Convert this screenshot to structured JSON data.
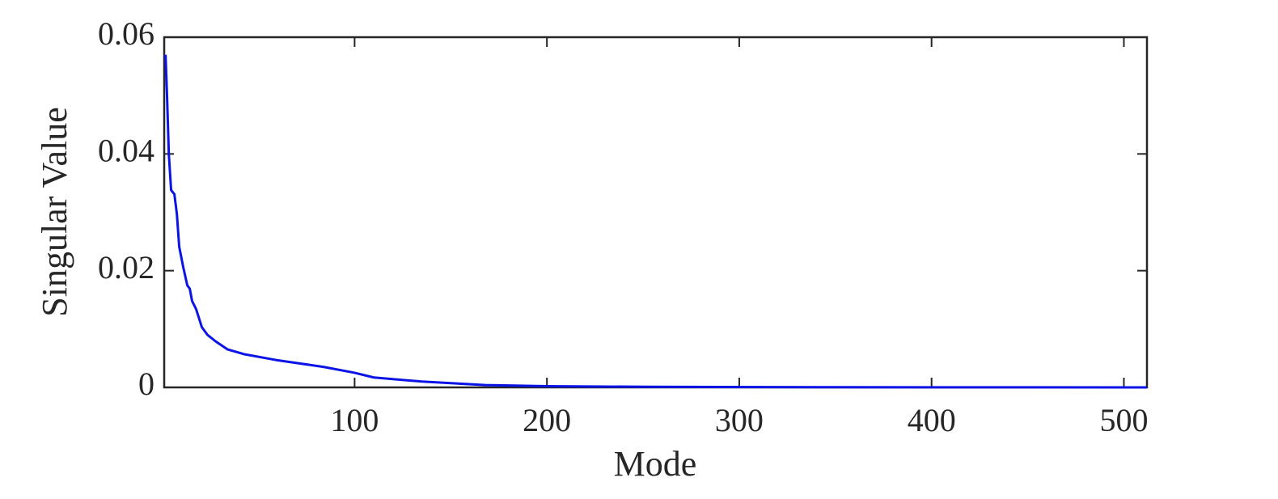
{
  "chart_data": {
    "type": "line",
    "xlabel": "Mode",
    "ylabel": "Singular Value",
    "xlim": [
      1,
      512
    ],
    "ylim": [
      0,
      0.06
    ],
    "xticks": [
      100,
      200,
      300,
      400,
      500
    ],
    "yticks": [
      0,
      0.02,
      0.04,
      0.06
    ],
    "series": [
      {
        "color": "#0a14e6",
        "x": [
          1.7,
          2.5,
          3.4,
          4.6,
          6.3,
          7.6,
          8.8,
          10.9,
          13,
          14.3,
          15.5,
          17.6,
          20.6,
          23.5,
          27.7,
          34,
          42.4,
          59,
          84,
          100,
          110,
          135,
          168,
          200,
          252,
          350,
          512
        ],
        "values": [
          0.057,
          0.0497,
          0.04,
          0.0338,
          0.0331,
          0.0297,
          0.0241,
          0.0206,
          0.0175,
          0.0169,
          0.0148,
          0.0134,
          0.0103,
          0.009,
          0.0079,
          0.0065,
          0.0057,
          0.0047,
          0.0035,
          0.0025,
          0.0017,
          0.001,
          0.0004,
          0.0002,
          0.0001,
          3e-05,
          0
        ]
      }
    ]
  }
}
